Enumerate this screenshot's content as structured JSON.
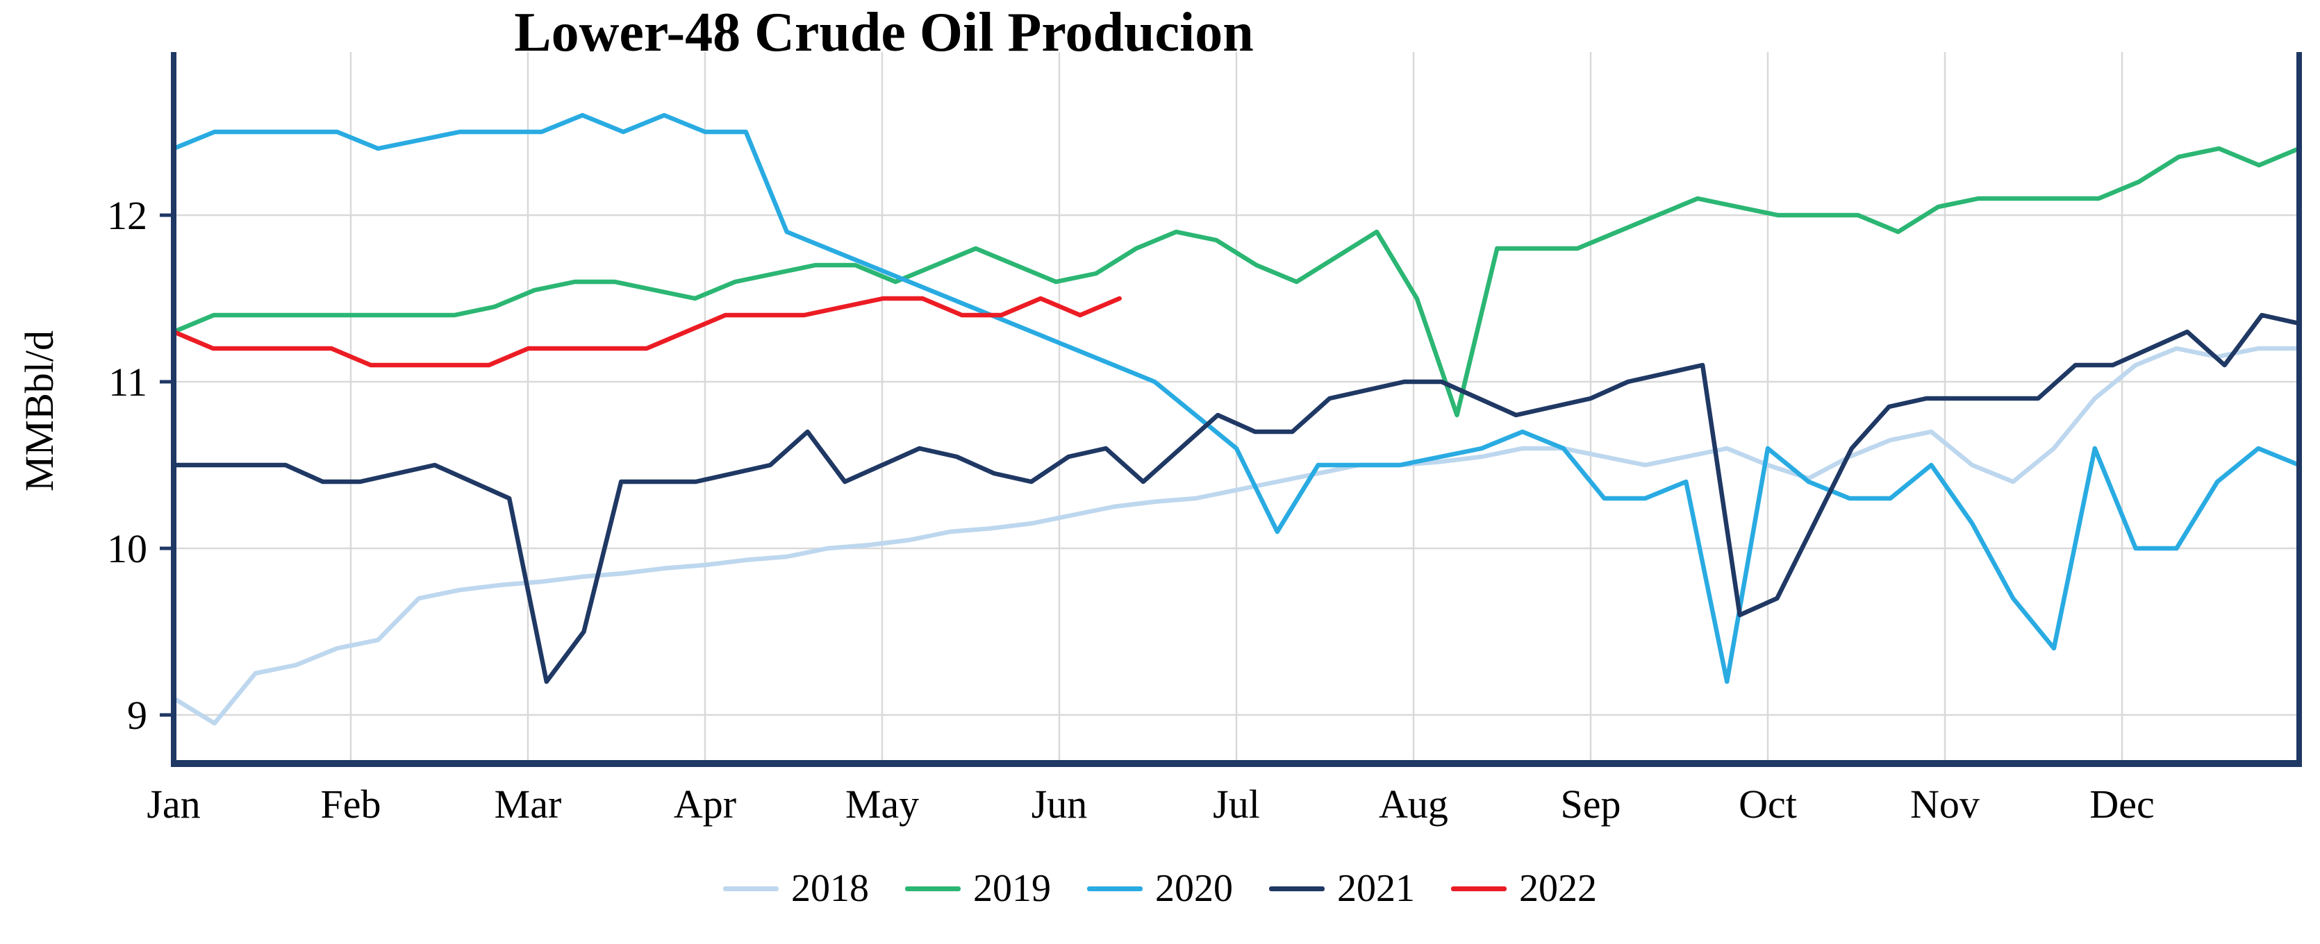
{
  "chart_data": {
    "type": "line",
    "title": "Lower-48 Crude Oil Producion",
    "ylabel": "MMBbl/d",
    "xlabel": "",
    "x_unit": "week-of-year",
    "x_tick_labels": [
      "Jan",
      "Feb",
      "Mar",
      "Apr",
      "May",
      "Jun",
      "Jul",
      "Aug",
      "Sep",
      "Oct",
      "Nov",
      "Dec"
    ],
    "y_ticks": [
      9,
      10,
      11,
      12
    ],
    "ylim": [
      8.7,
      12.8
    ],
    "grid": true,
    "legend_position": "bottom",
    "axis_color": "#1f3864",
    "grid_color": "#d9d9d9",
    "series": [
      {
        "name": "2018",
        "color": "#bdd7ee",
        "x_span": 1,
        "values": [
          9.1,
          8.95,
          9.25,
          9.3,
          9.4,
          9.45,
          9.7,
          9.75,
          9.78,
          9.8,
          9.83,
          9.85,
          9.88,
          9.9,
          9.93,
          9.95,
          10.0,
          10.02,
          10.05,
          10.1,
          10.12,
          10.15,
          10.2,
          10.25,
          10.28,
          10.3,
          10.35,
          10.4,
          10.45,
          10.5,
          10.5,
          10.52,
          10.55,
          10.6,
          10.6,
          10.55,
          10.5,
          10.55,
          10.6,
          10.5,
          10.42,
          10.55,
          10.65,
          10.7,
          10.5,
          10.4,
          10.6,
          10.9,
          11.1,
          11.2,
          11.15,
          11.2,
          11.2
        ]
      },
      {
        "name": "2019",
        "color": "#2bb673",
        "x_span": 1,
        "values": [
          11.3,
          11.4,
          11.4,
          11.4,
          11.4,
          11.4,
          11.4,
          11.4,
          11.45,
          11.55,
          11.6,
          11.6,
          11.55,
          11.5,
          11.6,
          11.65,
          11.7,
          11.7,
          11.6,
          11.7,
          11.8,
          11.7,
          11.6,
          11.65,
          11.8,
          11.9,
          11.85,
          11.7,
          11.6,
          11.75,
          11.9,
          11.5,
          10.8,
          11.8,
          11.8,
          11.8,
          11.9,
          12.0,
          12.1,
          12.05,
          12.0,
          12.0,
          12.0,
          11.9,
          12.05,
          12.1,
          12.1,
          12.1,
          12.1,
          12.2,
          12.35,
          12.4,
          12.3,
          12.4
        ]
      },
      {
        "name": "2020",
        "color": "#29abe2",
        "x_span": 1,
        "values": [
          12.4,
          12.5,
          12.5,
          12.5,
          12.5,
          12.4,
          12.45,
          12.5,
          12.5,
          12.5,
          12.6,
          12.5,
          12.6,
          12.5,
          12.5,
          11.9,
          11.8,
          11.7,
          11.6,
          11.5,
          11.4,
          11.3,
          11.2,
          11.1,
          11.0,
          10.8,
          10.6,
          10.1,
          10.5,
          10.5,
          10.5,
          10.55,
          10.6,
          10.7,
          10.6,
          10.3,
          10.3,
          10.4,
          9.2,
          10.6,
          10.4,
          10.3,
          10.3,
          10.5,
          10.15,
          9.7,
          9.4,
          10.6,
          10.0,
          10.0,
          10.4,
          10.6,
          10.5
        ]
      },
      {
        "name": "2021",
        "color": "#1f3864",
        "x_span": 1,
        "values": [
          10.5,
          10.5,
          10.5,
          10.5,
          10.4,
          10.4,
          10.45,
          10.5,
          10.4,
          10.3,
          9.2,
          9.5,
          10.4,
          10.4,
          10.4,
          10.45,
          10.5,
          10.7,
          10.4,
          10.5,
          10.6,
          10.55,
          10.45,
          10.4,
          10.55,
          10.6,
          10.4,
          10.6,
          10.8,
          10.7,
          10.7,
          10.9,
          10.95,
          11.0,
          11.0,
          10.9,
          10.8,
          10.85,
          10.9,
          11.0,
          11.05,
          11.1,
          9.6,
          9.7,
          10.15,
          10.6,
          10.85,
          10.9,
          10.9,
          10.9,
          10.9,
          11.1,
          11.1,
          11.2,
          11.3,
          11.1,
          11.4,
          11.35
        ]
      },
      {
        "name": "2022",
        "color": "#ec1c24",
        "x_span": 0.445,
        "values": [
          11.3,
          11.2,
          11.2,
          11.2,
          11.2,
          11.1,
          11.1,
          11.1,
          11.1,
          11.2,
          11.2,
          11.2,
          11.2,
          11.3,
          11.4,
          11.4,
          11.4,
          11.45,
          11.5,
          11.5,
          11.4,
          11.4,
          11.5,
          11.4,
          11.5
        ]
      }
    ]
  }
}
